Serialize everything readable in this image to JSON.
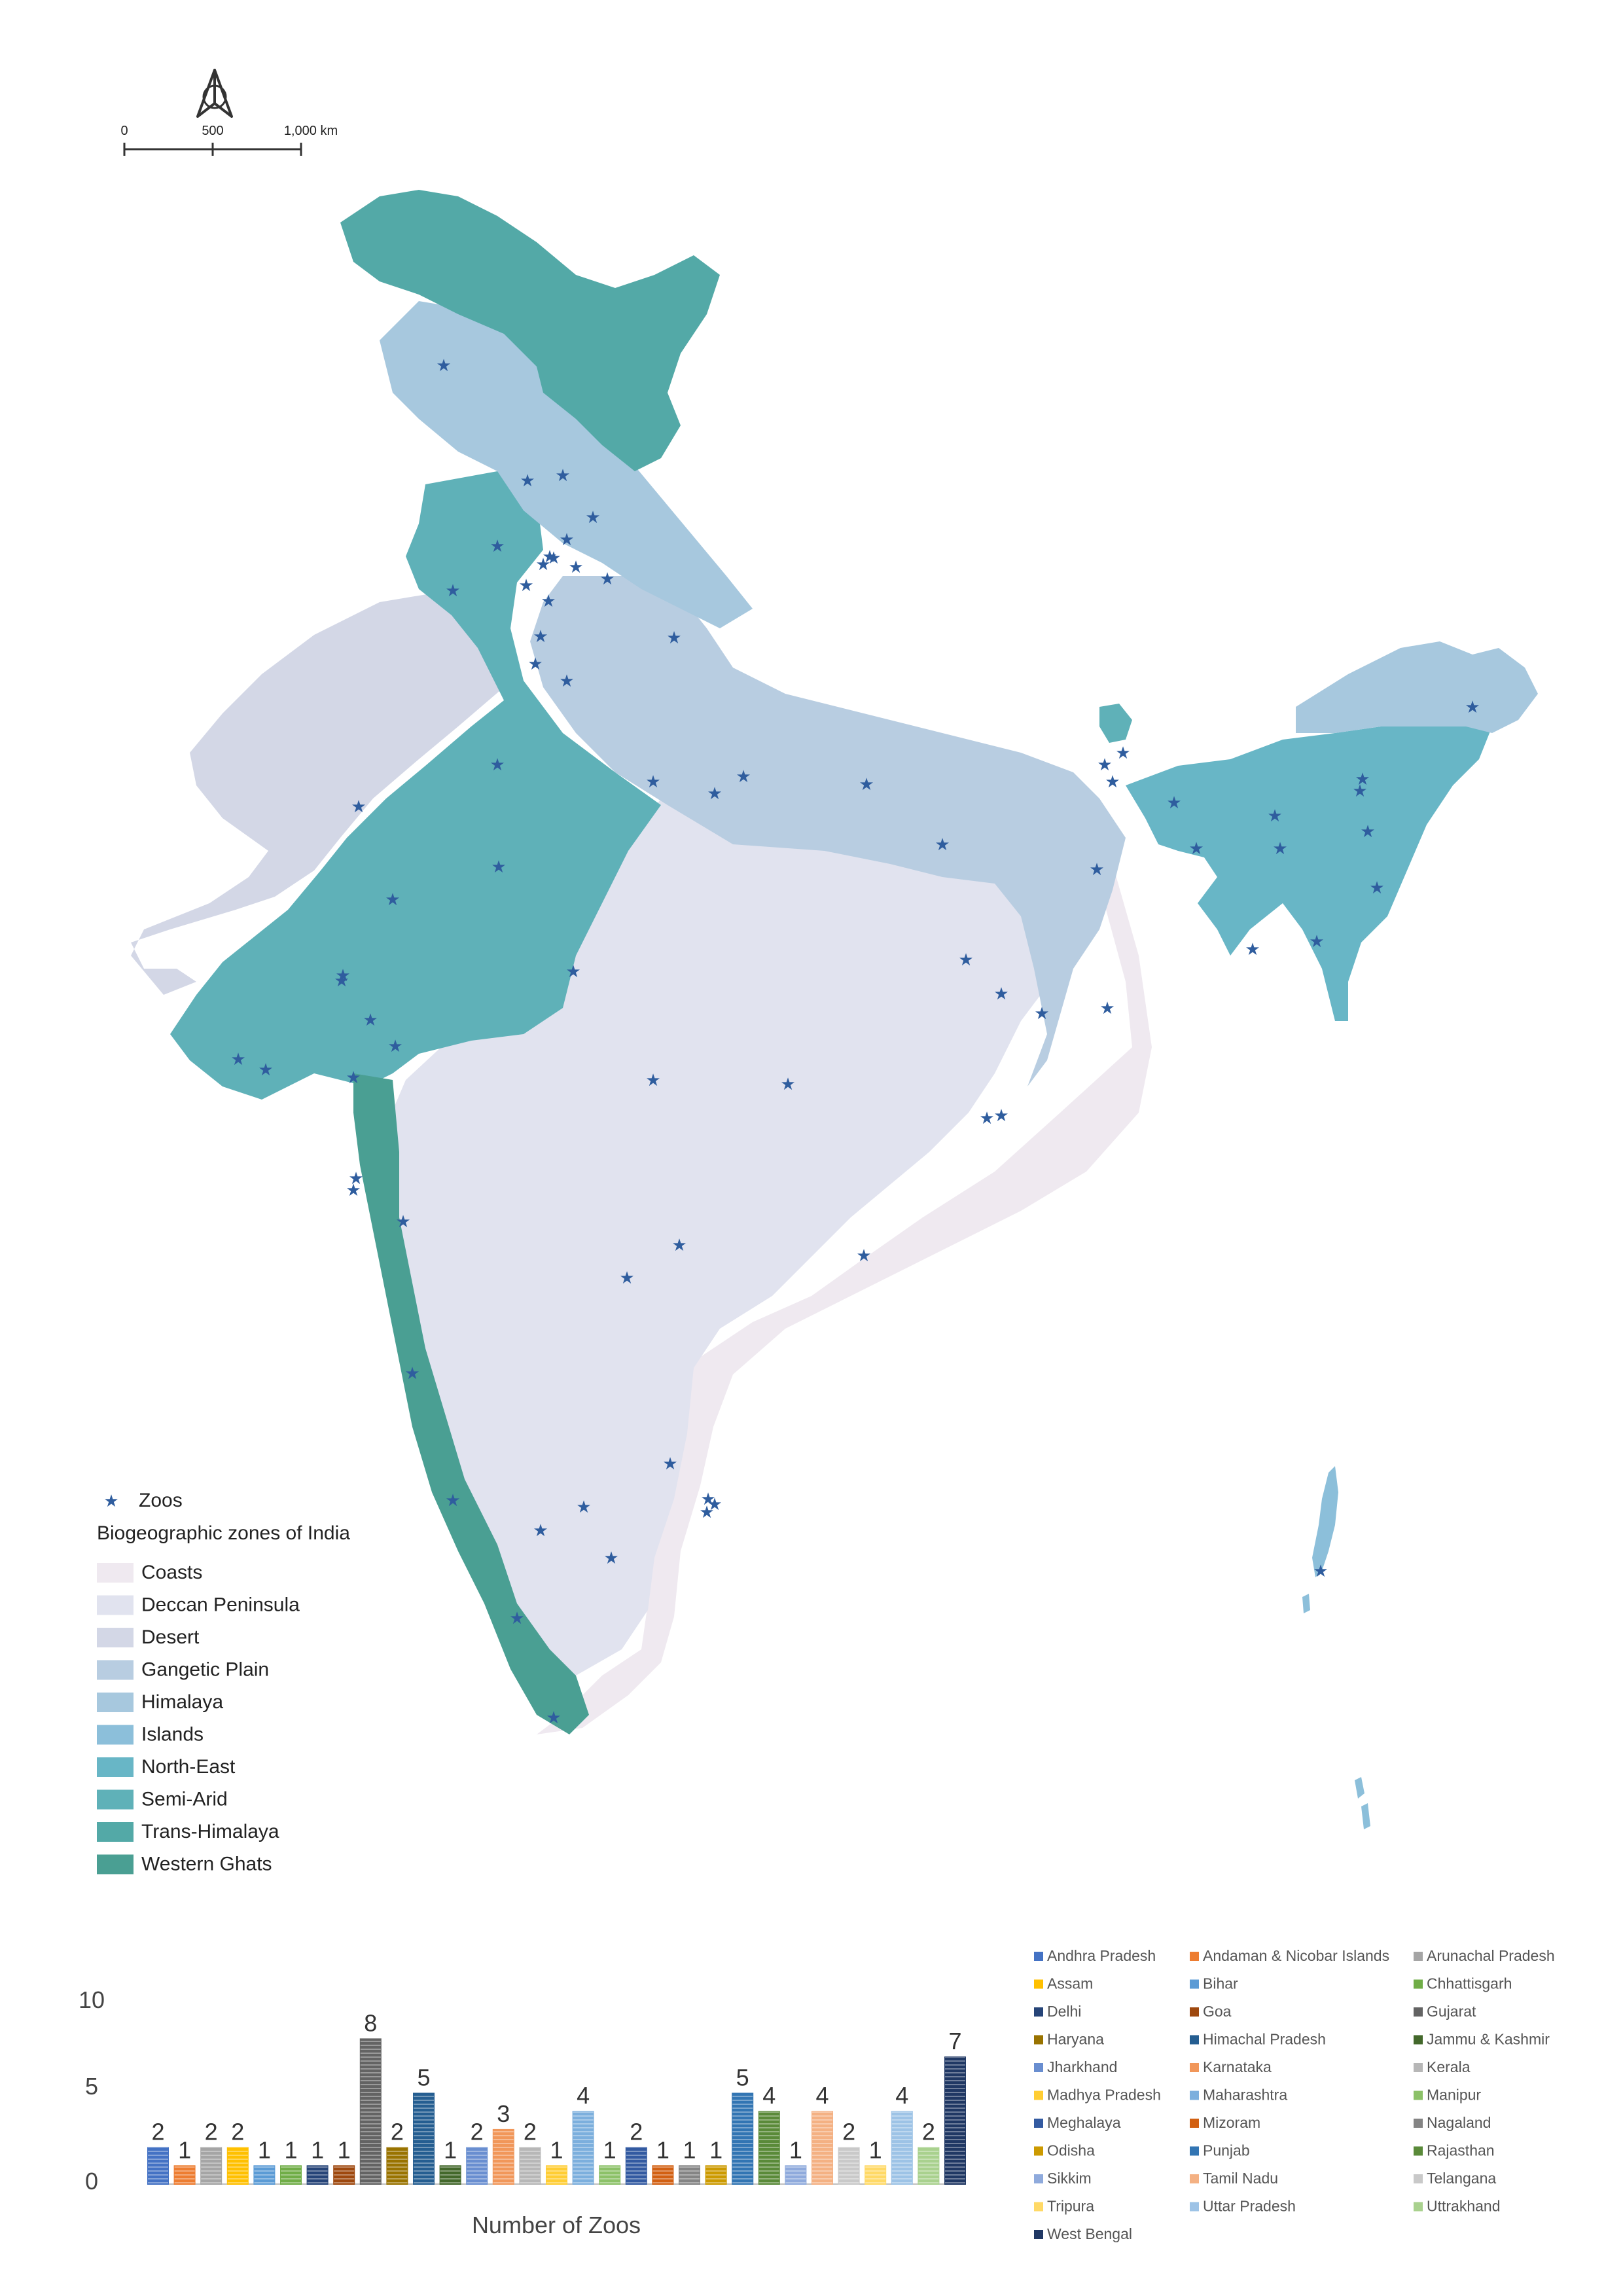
{
  "scale_bar": {
    "ticks": [
      "0",
      "500",
      "1,000 km"
    ]
  },
  "legend": {
    "zoos_label": "Zoos",
    "zones_title": "Biogeographic zones of India",
    "zones": [
      {
        "name": "Coasts",
        "color": "#efe9f0"
      },
      {
        "name": "Deccan Peninsula",
        "color": "#e1e3ef"
      },
      {
        "name": "Desert",
        "color": "#d3d7e6"
      },
      {
        "name": "Gangetic Plain",
        "color": "#b8cde1"
      },
      {
        "name": "Himalaya",
        "color": "#a7c8de"
      },
      {
        "name": "Islands",
        "color": "#8cbfda"
      },
      {
        "name": "North-East",
        "color": "#68b6c6"
      },
      {
        "name": "Semi-Arid",
        "color": "#5fb1b8"
      },
      {
        "name": "Trans-Himalaya",
        "color": "#53a9a7"
      },
      {
        "name": "Western Ghats",
        "color": "#4a9f93"
      }
    ]
  },
  "zoo_star_color": "#2f5d9e",
  "chart_data": {
    "type": "bar",
    "xlabel": "Number of Zoos",
    "ylim": [
      0,
      10
    ],
    "yticks": [
      "0",
      "5",
      "10"
    ],
    "categories": [
      "Andhra Pradesh",
      "Andaman & Nicobar Islands",
      "Arunachal Pradesh",
      "Assam",
      "Bihar",
      "Chhattisgarh",
      "Delhi",
      "Goa",
      "Gujarat",
      "Haryana",
      "Himachal Pradesh",
      "Jammu & Kashmir",
      "Jharkhand",
      "Karnataka",
      "Kerala",
      "Madhya Pradesh",
      "Maharashtra",
      "Manipur",
      "Meghalaya",
      "Mizoram",
      "Nagaland",
      "Odisha",
      "Punjab",
      "Rajasthan",
      "Sikkim",
      "Tamil Nadu",
      "Telangana",
      "Tripura",
      "Uttar Pradesh",
      "Uttrakhand",
      "West Bengal"
    ],
    "values": [
      2,
      1,
      2,
      2,
      1,
      1,
      1,
      1,
      8,
      2,
      5,
      1,
      2,
      3,
      2,
      1,
      4,
      1,
      2,
      1,
      1,
      1,
      5,
      4,
      1,
      4,
      2,
      1,
      4,
      2,
      7
    ],
    "colors": [
      "#4472c4",
      "#ed7d31",
      "#a5a5a5",
      "#ffc000",
      "#5b9bd5",
      "#70ad47",
      "#264478",
      "#9e480e",
      "#636363",
      "#997300",
      "#255e91",
      "#43682b",
      "#698ed0",
      "#f1975a",
      "#b7b7b7",
      "#ffcd33",
      "#7cafdd",
      "#8cc168",
      "#335aa1",
      "#d26012",
      "#848484",
      "#cc9a00",
      "#3275b3",
      "#5a8a39",
      "#8faadc",
      "#f4b183",
      "#c9c9c9",
      "#ffd966",
      "#9dc3e6",
      "#a9d18e",
      "#203864"
    ]
  }
}
